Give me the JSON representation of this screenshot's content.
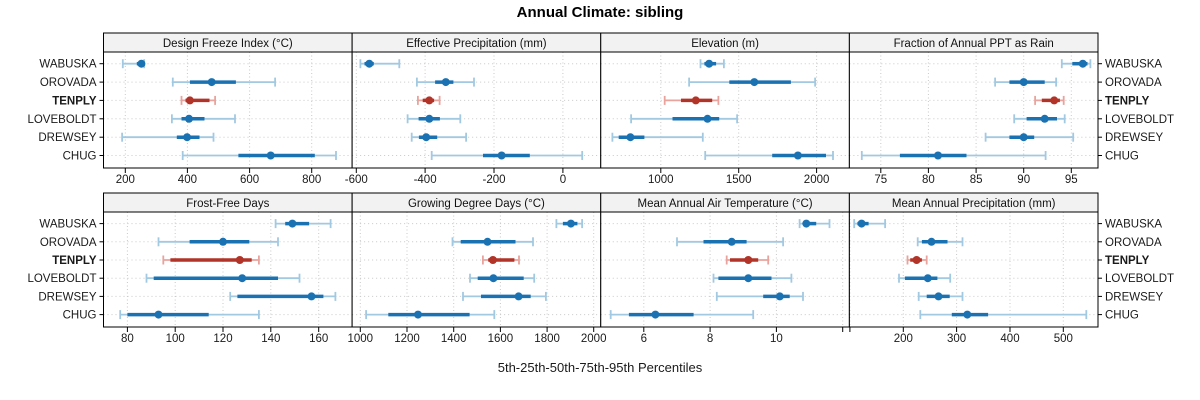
{
  "title": "Annual Climate: sibling",
  "caption": "5th-25th-50th-75th-95th Percentiles",
  "stations": [
    "WABUSKA",
    "OROVADA",
    "TENPLY",
    "LOVEBOLDT",
    "DREWSEY",
    "CHUG"
  ],
  "highlight_station": "TENPLY",
  "colors": {
    "blue": "#1a72b2",
    "blue_light": "#a2c9e2",
    "red": "#b23327",
    "red_light": "#e9a39c",
    "grid": "#c9c9c9",
    "strip_bg": "#f2f2f2",
    "border": "#000000",
    "text": "#1a1a1a"
  },
  "chart_data": [
    {
      "type": "dotplot-percentiles",
      "row": 0,
      "col": 0,
      "title": "Design Freeze Index (°C)",
      "xlim": [
        130,
        930
      ],
      "ticks": [
        {
          "v": 200,
          "label": "200"
        },
        {
          "v": 400,
          "label": "400"
        },
        {
          "v": 600,
          "label": "600"
        },
        {
          "v": 800,
          "label": "800"
        }
      ],
      "percentiles": [
        5,
        25,
        50,
        75,
        95
      ],
      "values": {
        "WABUSKA": [
          192,
          237,
          252,
          258,
          261
        ],
        "OROVADA": [
          353,
          408,
          478,
          556,
          682
        ],
        "TENPLY": [
          381,
          394,
          408,
          471,
          489
        ],
        "LOVEBOLDT": [
          350,
          381,
          405,
          455,
          553
        ],
        "DREWSEY": [
          190,
          366,
          399,
          439,
          484
        ],
        "CHUG": [
          385,
          564,
          668,
          810,
          878
        ]
      }
    },
    {
      "type": "dotplot-percentiles",
      "row": 0,
      "col": 1,
      "title": "Effective Precipitation (mm)",
      "xlim": [
        -612,
        110
      ],
      "ticks": [
        {
          "v": -600,
          "label": "-600"
        },
        {
          "v": -400,
          "label": "-400"
        },
        {
          "v": -200,
          "label": "-200"
        },
        {
          "v": 0,
          "label": "0"
        }
      ],
      "percentiles": [
        5,
        25,
        50,
        75,
        95
      ],
      "values": {
        "WABUSKA": [
          -588,
          -576,
          -562,
          -549,
          -475
        ],
        "OROVADA": [
          -424,
          -371,
          -340,
          -318,
          -258
        ],
        "TENPLY": [
          -421,
          -407,
          -388,
          -374,
          -358
        ],
        "LOVEBOLDT": [
          -451,
          -419,
          -388,
          -357,
          -298
        ],
        "DREWSEY": [
          -439,
          -418,
          -397,
          -365,
          -281
        ],
        "CHUG": [
          -381,
          -232,
          -178,
          -96,
          56
        ]
      }
    },
    {
      "type": "dotplot-percentiles",
      "row": 0,
      "col": 2,
      "title": "Elevation (m)",
      "xlim": [
        615,
        2210
      ],
      "ticks": [
        {
          "v": 1000,
          "label": "1000"
        },
        {
          "v": 1500,
          "label": "1500"
        },
        {
          "v": 2000,
          "label": "2000"
        }
      ],
      "percentiles": [
        5,
        25,
        50,
        75,
        95
      ],
      "values": {
        "WABUSKA": [
          1255,
          1280,
          1310,
          1355,
          1405
        ],
        "OROVADA": [
          1182,
          1440,
          1600,
          1835,
          1990
        ],
        "TENPLY": [
          1025,
          1130,
          1225,
          1330,
          1370
        ],
        "LOVEBOLDT": [
          810,
          1075,
          1300,
          1375,
          1490
        ],
        "DREWSEY": [
          690,
          730,
          805,
          895,
          1270
        ],
        "CHUG": [
          1285,
          1715,
          1880,
          2060,
          2105
        ]
      }
    },
    {
      "type": "dotplot-percentiles",
      "row": 0,
      "col": 3,
      "title": "Fraction of Annual PPT as Rain",
      "xlim": [
        71.7,
        97.8
      ],
      "ticks": [
        {
          "v": 75,
          "label": "75"
        },
        {
          "v": 80,
          "label": "80"
        },
        {
          "v": 85,
          "label": "85"
        },
        {
          "v": 90,
          "label": "90"
        },
        {
          "v": 95,
          "label": "95"
        }
      ],
      "percentiles": [
        5,
        25,
        50,
        75,
        95
      ],
      "values": {
        "WABUSKA": [
          94.0,
          95.1,
          96.2,
          96.7,
          97.0
        ],
        "OROVADA": [
          87.0,
          88.5,
          90.0,
          92.2,
          93.4
        ],
        "TENPLY": [
          91.2,
          91.9,
          93.2,
          93.8,
          94.2
        ],
        "LOVEBOLDT": [
          89.0,
          90.3,
          92.2,
          93.5,
          94.3
        ],
        "DREWSEY": [
          86.0,
          88.5,
          90.0,
          91.1,
          95.2
        ],
        "CHUG": [
          73.0,
          77.0,
          81.0,
          84.0,
          92.3
        ]
      }
    },
    {
      "type": "dotplot-percentiles",
      "row": 1,
      "col": 0,
      "title": "Frost-Free Days",
      "xlim": [
        70,
        174
      ],
      "ticks": [
        {
          "v": 80,
          "label": "80"
        },
        {
          "v": 100,
          "label": "100"
        },
        {
          "v": 120,
          "label": "120"
        },
        {
          "v": 140,
          "label": "140"
        },
        {
          "v": 160,
          "label": "160"
        }
      ],
      "percentiles": [
        5,
        25,
        50,
        75,
        95
      ],
      "values": {
        "WABUSKA": [
          142,
          146,
          149,
          156,
          165
        ],
        "OROVADA": [
          93,
          106,
          120,
          131,
          143
        ],
        "TENPLY": [
          95,
          98,
          127,
          132,
          135
        ],
        "LOVEBOLDT": [
          88,
          91,
          128,
          143,
          152
        ],
        "DREWSEY": [
          123,
          126,
          157,
          162,
          167
        ],
        "CHUG": [
          77,
          80,
          93,
          114,
          135
        ]
      }
    },
    {
      "type": "dotplot-percentiles",
      "row": 1,
      "col": 1,
      "title": "Growing Degree Days (°C)",
      "xlim": [
        965,
        2030
      ],
      "ticks": [
        {
          "v": 1000,
          "label": "1000"
        },
        {
          "v": 1200,
          "label": "1200"
        },
        {
          "v": 1400,
          "label": "1400"
        },
        {
          "v": 1600,
          "label": "1600"
        },
        {
          "v": 1800,
          "label": "1800"
        },
        {
          "v": 2000,
          "label": "2000"
        }
      ],
      "percentiles": [
        5,
        25,
        50,
        75,
        95
      ],
      "values": {
        "WABUSKA": [
          1840,
          1868,
          1902,
          1930,
          1950
        ],
        "OROVADA": [
          1395,
          1430,
          1545,
          1665,
          1740
        ],
        "TENPLY": [
          1525,
          1548,
          1568,
          1660,
          1680
        ],
        "LOVEBOLDT": [
          1470,
          1503,
          1570,
          1700,
          1745
        ],
        "DREWSEY": [
          1440,
          1517,
          1678,
          1730,
          1795
        ],
        "CHUG": [
          1025,
          1120,
          1247,
          1468,
          1574
        ]
      }
    },
    {
      "type": "dotplot-percentiles",
      "row": 1,
      "col": 2,
      "title": "Mean Annual Air Temperature (°C)",
      "xlim": [
        4.7,
        12.2
      ],
      "ticks": [
        {
          "v": 6,
          "label": "6"
        },
        {
          "v": 8,
          "label": "8"
        },
        {
          "v": 10,
          "label": "10"
        },
        {
          "v": 12,
          "label": ""
        }
      ],
      "percentiles": [
        5,
        25,
        50,
        75,
        95
      ],
      "values": {
        "WABUSKA": [
          10.7,
          10.8,
          10.9,
          11.2,
          11.6
        ],
        "OROVADA": [
          7.0,
          7.8,
          8.65,
          9.1,
          10.2
        ],
        "TENPLY": [
          8.5,
          8.6,
          9.15,
          9.45,
          9.75
        ],
        "LOVEBOLDT": [
          8.1,
          8.25,
          9.15,
          9.85,
          10.45
        ],
        "DREWSEY": [
          8.2,
          9.6,
          10.1,
          10.4,
          10.8
        ],
        "CHUG": [
          5.0,
          5.55,
          6.35,
          7.5,
          9.3
        ]
      }
    },
    {
      "type": "dotplot-percentiles",
      "row": 1,
      "col": 3,
      "title": "Mean Annual Precipitation (mm)",
      "xlim": [
        99,
        565
      ],
      "ticks": [
        {
          "v": 100,
          "label": ""
        },
        {
          "v": 200,
          "label": "200"
        },
        {
          "v": 300,
          "label": "300"
        },
        {
          "v": 400,
          "label": "400"
        },
        {
          "v": 500,
          "label": "500"
        }
      ],
      "percentiles": [
        5,
        25,
        50,
        75,
        95
      ],
      "values": {
        "WABUSKA": [
          108,
          114,
          122,
          135,
          166
        ],
        "OROVADA": [
          227,
          235,
          253,
          283,
          311
        ],
        "TENPLY": [
          208,
          213,
          225,
          235,
          244
        ],
        "LOVEBOLDT": [
          192,
          203,
          246,
          264,
          288
        ],
        "DREWSEY": [
          229,
          244,
          266,
          287,
          311
        ],
        "CHUG": [
          232,
          291,
          320,
          359,
          543
        ]
      }
    }
  ]
}
